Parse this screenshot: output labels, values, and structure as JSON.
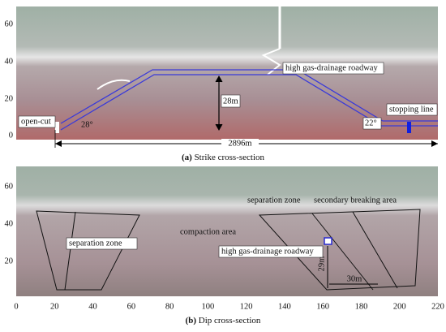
{
  "panel_a": {
    "caption_letter": "(a)",
    "caption": "Strike cross-section",
    "yticks": [
      0,
      20,
      40,
      60
    ],
    "labels": {
      "open_cut": "open-cut",
      "angle_left": "28°",
      "height": "28m",
      "roadway": "high gas-drainage roadway",
      "stopping_line": "stopping line",
      "angle_right": "22°",
      "length": "2896m"
    }
  },
  "panel_b": {
    "caption_letter": "(b)",
    "caption": "Dip cross-section",
    "yticks": [
      20,
      40,
      60
    ],
    "xticks": [
      0,
      20,
      40,
      60,
      80,
      100,
      120,
      140,
      160,
      180,
      200,
      220
    ],
    "labels": {
      "separation_left": "separation zone",
      "compaction": "compaction area",
      "separation_right": "separation zone",
      "secondary": "secondary breaking area",
      "roadway": "high gas-drainage roadway",
      "vertical": "29m",
      "horizontal": "30m"
    }
  }
}
